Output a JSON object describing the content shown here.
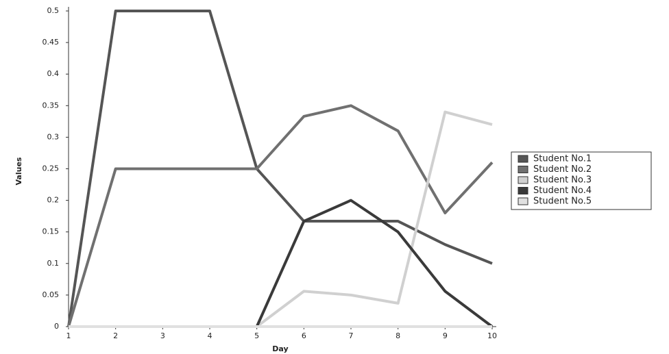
{
  "chart_data": {
    "type": "line",
    "x": [
      1,
      2,
      3,
      4,
      5,
      6,
      7,
      8,
      9,
      10
    ],
    "x_label": "Day",
    "y_label": "Values",
    "xlim": [
      1,
      10
    ],
    "xticks": [
      1,
      2,
      3,
      4,
      5,
      6,
      7,
      8,
      9,
      10
    ],
    "ylim": [
      0,
      0.5
    ],
    "yticks": [
      0,
      0.05,
      0.1,
      0.15,
      0.2,
      0.25,
      0.3,
      0.35,
      0.4,
      0.45,
      0.5
    ],
    "series": [
      {
        "name": "Student No.1",
        "color": "#555555",
        "values": [
          0,
          0.5,
          0.5,
          0.5,
          0.25,
          0.167,
          0.167,
          0.167,
          0.13,
          0.1
        ]
      },
      {
        "name": "Student No.2",
        "color": "#707070",
        "values": [
          0,
          0.25,
          0.25,
          0.25,
          0.25,
          0.333,
          0.35,
          0.31,
          0.18,
          0.26
        ]
      },
      {
        "name": "Student No.3",
        "color": "#d0d0d0",
        "values": [
          0,
          0,
          0,
          0,
          0,
          0.056,
          0.05,
          0.037,
          0.34,
          0.32
        ]
      },
      {
        "name": "Student No.4",
        "color": "#3a3a3a",
        "values": [
          0,
          0,
          0,
          0,
          0,
          0.167,
          0.2,
          0.15,
          0.056,
          0
        ]
      },
      {
        "name": "Student No.5",
        "color": "#e0e0e0",
        "values": [
          0,
          0,
          0,
          0,
          0,
          0,
          0,
          0,
          0,
          0
        ]
      }
    ]
  }
}
